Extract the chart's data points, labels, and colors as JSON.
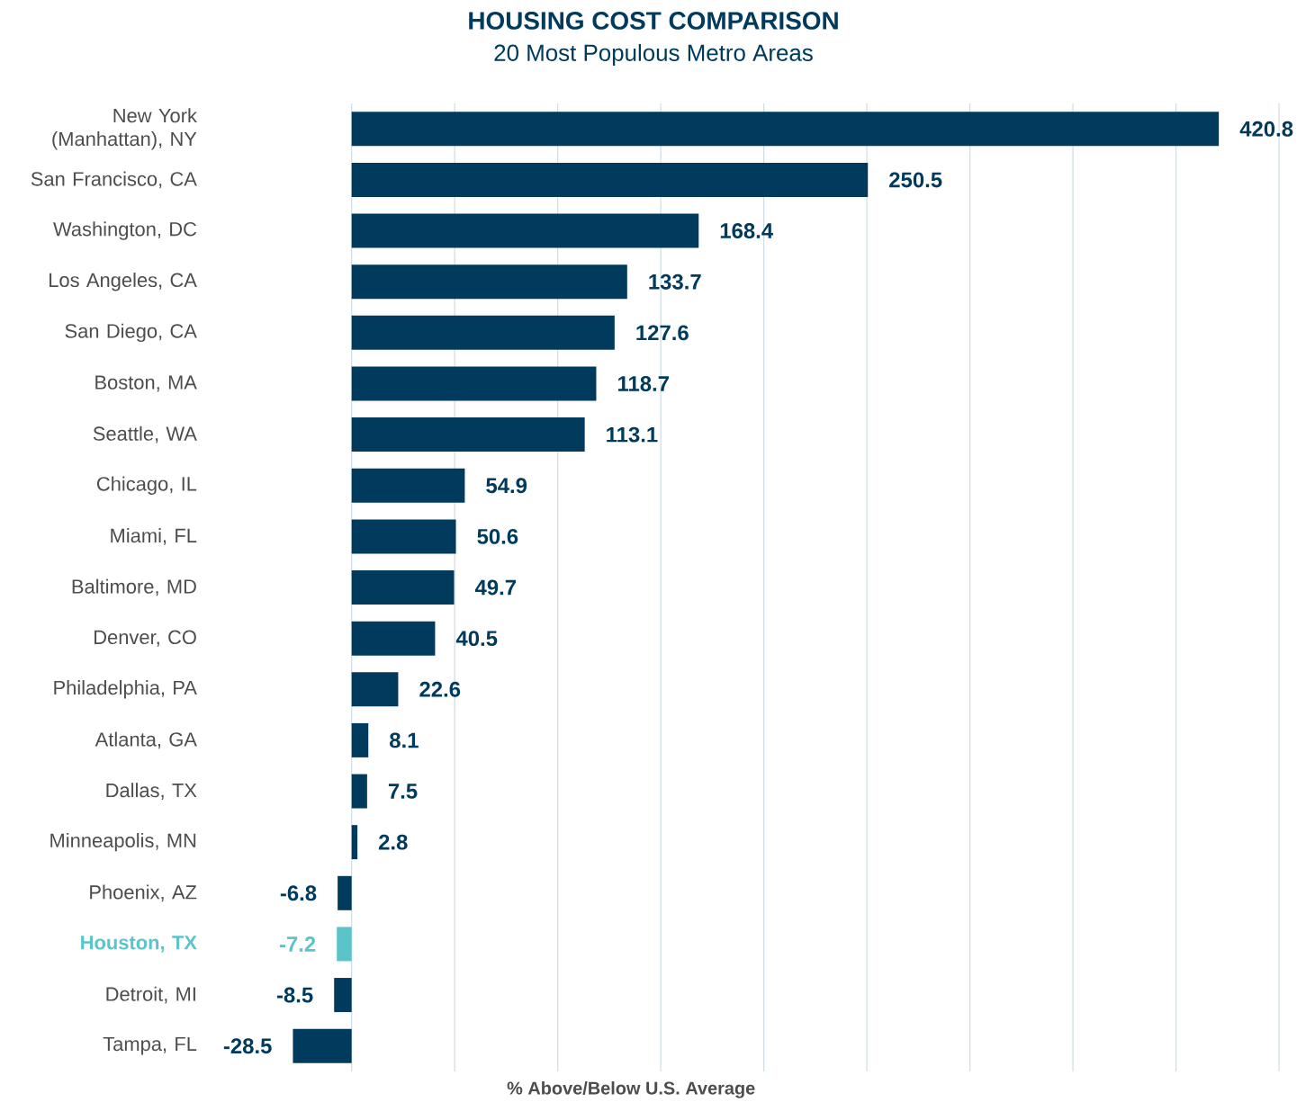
{
  "chart_data": {
    "type": "bar",
    "orientation": "horizontal",
    "title": "HOUSING COST COMPARISON",
    "subtitle": "20 Most Populous Metro Areas",
    "xlabel": "%  Above/Below U.S. Average",
    "categories": [
      "New York (Manhattan), NY",
      "San Francisco, CA",
      "Washington, DC",
      "Los Angeles, CA",
      "San Diego, CA",
      "Boston, MA",
      "Seattle, WA",
      "Chicago, IL",
      "Miami, FL",
      "Baltimore, MD",
      "Denver, CO",
      "Philadelphia, PA",
      "Atlanta, GA",
      "Dallas, TX",
      "Minneapolis, MN",
      "Phoenix, AZ",
      "Houston, TX",
      "Detroit, MI",
      "Tampa, FL"
    ],
    "values": [
      420.8,
      250.5,
      168.4,
      133.7,
      127.6,
      118.7,
      113.1,
      54.9,
      50.6,
      49.7,
      40.5,
      22.6,
      8.1,
      7.5,
      2.8,
      -6.8,
      -7.2,
      -8.5,
      -28.5
    ],
    "value_labels": [
      "420.8",
      "250.5",
      "168.4",
      "133.7",
      "127.6",
      "118.7",
      "113.1",
      "54.9",
      "50.6",
      "49.7",
      "40.5",
      "22.6",
      "8.1",
      "7.5",
      "2.8",
      "-6.8",
      "-7.2",
      "-8.5",
      "-28.5"
    ],
    "colors": [
      "#003a5c",
      "#003a5c",
      "#003a5c",
      "#003a5c",
      "#003a5c",
      "#003a5c",
      "#003a5c",
      "#003a5c",
      "#003a5c",
      "#003a5c",
      "#003a5c",
      "#003a5c",
      "#003a5c",
      "#003a5c",
      "#003a5c",
      "#003a5c",
      "#5bc4c9",
      "#003a5c",
      "#003a5c"
    ],
    "xlim": [
      -30,
      450
    ],
    "xticks": [
      {
        "value": 0,
        "label": null
      },
      {
        "value": 50,
        "label": null
      },
      {
        "value": 100,
        "label": null
      },
      {
        "value": 150,
        "label": null
      },
      {
        "value": 200,
        "label": null
      },
      {
        "value": 250,
        "label": null
      },
      {
        "value": 300,
        "label": null
      },
      {
        "value": 350,
        "label": null
      },
      {
        "value": 400,
        "label": null
      },
      {
        "value": 450,
        "label": null
      }
    ],
    "grid": "x",
    "tick_labels": "y"
  }
}
